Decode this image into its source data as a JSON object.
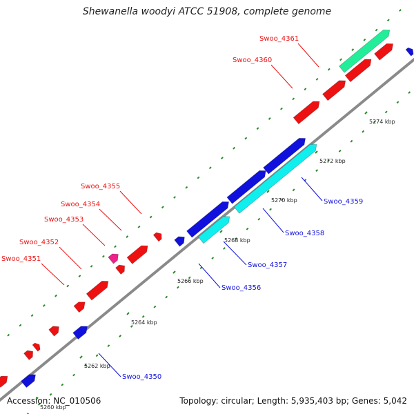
{
  "title": "Shewanella woodyi ATCC 51908, complete genome",
  "footer": {
    "accession": "Accession: NC_010506",
    "topology": "Topology: circular; Length: 5,935,403 bp; Genes: 5,042"
  },
  "colors": {
    "forward_gene": "#ee1111",
    "reverse_gene": "#1111dd",
    "cyan_gene": "#11eeee",
    "green_gene": "#22ee99",
    "magenta_gene": "#ee2288",
    "backbone": "#888888",
    "ticks": "#2a8a2a"
  },
  "tick_labels": [
    "5260 kbp",
    "5262 kbp",
    "5264 kbp",
    "5266 kbp",
    "5268 kbp",
    "5270 kbp",
    "5272 kbp",
    "5274 kbp"
  ],
  "gene_labels_forward": [
    "Swoo_4351",
    "Swoo_4352",
    "Swoo_4353",
    "Swoo_4354",
    "Swoo_4355",
    "Swoo_4360",
    "Swoo_4361"
  ],
  "gene_labels_reverse": [
    "Swoo_4350",
    "Swoo_4356",
    "Swoo_4357",
    "Swoo_4358",
    "Swoo_4359"
  ]
}
